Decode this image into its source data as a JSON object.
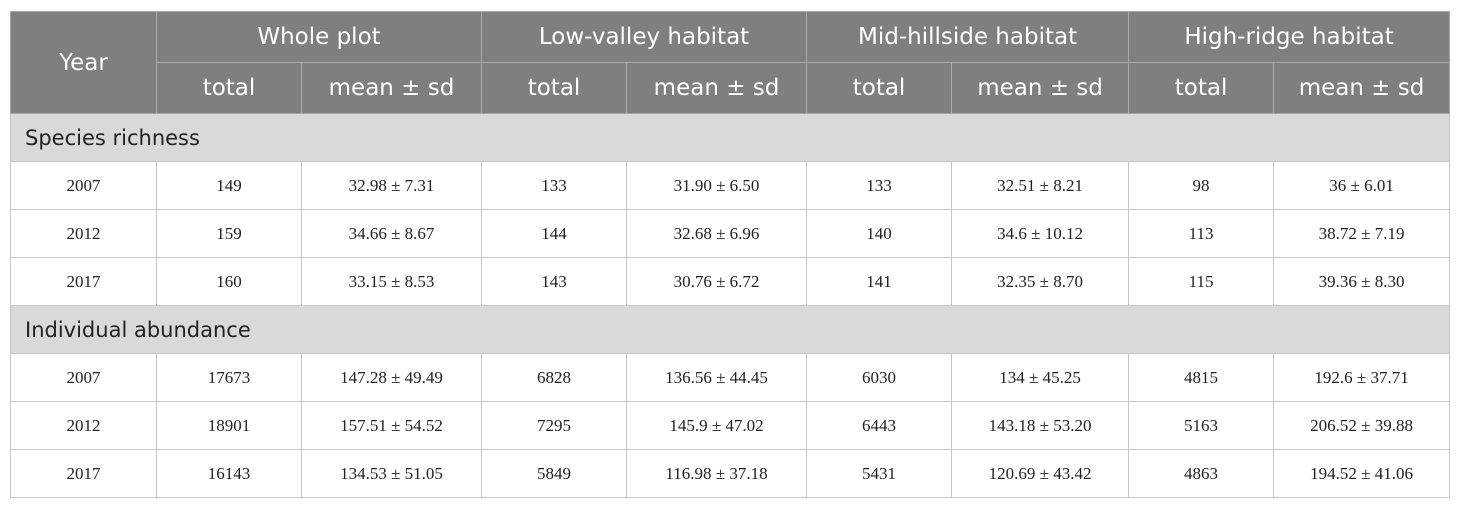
{
  "header": {
    "year": "Year",
    "groups": [
      "Whole plot",
      "Low-valley habitat",
      "Mid-hillside habitat",
      "High-ridge habitat"
    ],
    "subheaders": [
      "total",
      "mean ± sd",
      "total",
      "mean ± sd",
      "total",
      "mean ± sd",
      "total",
      "mean ± sd"
    ]
  },
  "sections": [
    {
      "title": "Species richness",
      "rows": [
        [
          "2007",
          "149",
          "32.98 ± 7.31",
          "133",
          "31.90 ± 6.50",
          "133",
          "32.51 ± 8.21",
          "98",
          "36 ± 6.01"
        ],
        [
          "2012",
          "159",
          "34.66 ± 8.67",
          "144",
          "32.68 ± 6.96",
          "140",
          "34.6 ± 10.12",
          "113",
          "38.72 ± 7.19"
        ],
        [
          "2017",
          "160",
          "33.15 ± 8.53",
          "143",
          "30.76 ± 6.72",
          "141",
          "32.35 ± 8.70",
          "115",
          "39.36 ± 8.30"
        ]
      ]
    },
    {
      "title": "Individual abundance",
      "rows": [
        [
          "2007",
          "17673",
          "147.28 ± 49.49",
          "6828",
          "136.56 ± 44.45",
          "6030",
          "134 ± 45.25",
          "4815",
          "192.6 ± 37.71"
        ],
        [
          "2012",
          "18901",
          "157.51 ± 54.52",
          "7295",
          "145.9 ± 47.02",
          "6443",
          "143.18 ± 53.20",
          "5163",
          "206.52 ± 39.88"
        ],
        [
          "2017",
          "16143",
          "134.53 ± 51.05",
          "5849",
          "116.98 ± 37.18",
          "5431",
          "120.69 ± 43.42",
          "4863",
          "194.52 ± 41.06"
        ]
      ]
    }
  ]
}
